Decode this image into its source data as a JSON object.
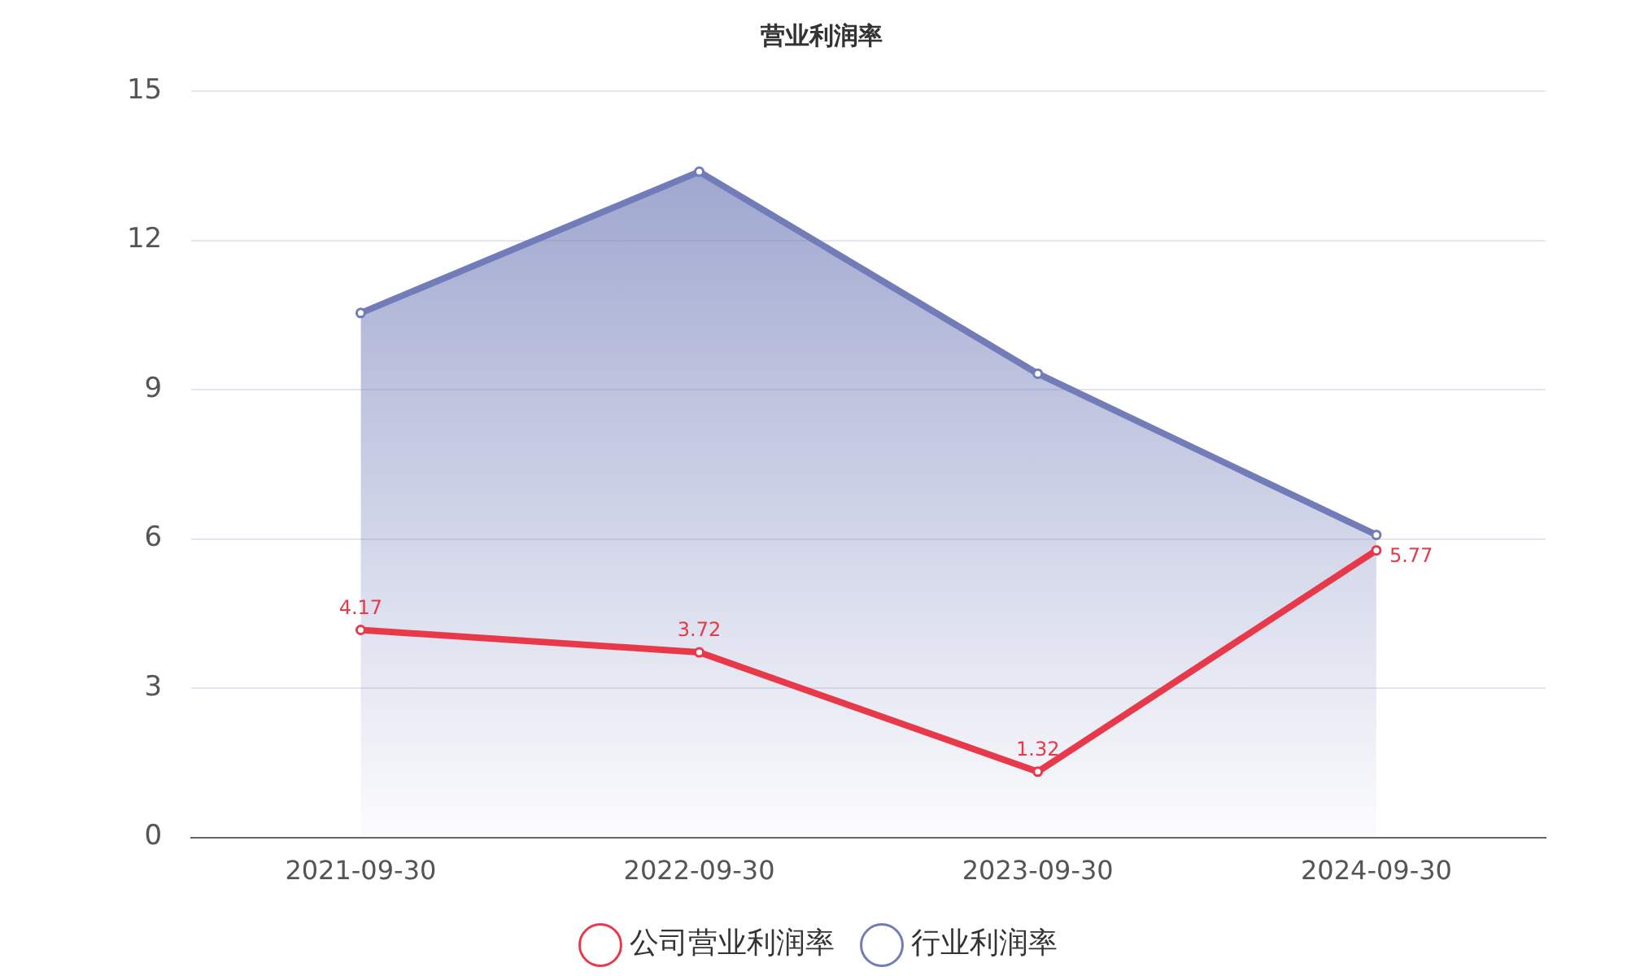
{
  "chart_data": {
    "type": "line",
    "title": "营业利润率",
    "categories": [
      "2021-09-30",
      "2022-09-30",
      "2023-09-30",
      "2024-09-30"
    ],
    "series": [
      {
        "name": "公司营业利润率",
        "type": "line",
        "color": "#e8394a",
        "values": [
          4.17,
          3.72,
          1.32,
          5.77
        ],
        "value_labels": [
          "4.17",
          "3.72",
          "1.32",
          "5.77"
        ]
      },
      {
        "name": "行业利润率",
        "type": "area",
        "color": "#717cb8",
        "values": [
          10.54,
          13.38,
          9.32,
          6.08
        ]
      }
    ],
    "ylim": [
      0,
      15
    ],
    "yticks": [
      0,
      3,
      6,
      9,
      12,
      15
    ],
    "grid": "y",
    "legend": "bottom",
    "marker": "circle",
    "line_style": "solid"
  }
}
